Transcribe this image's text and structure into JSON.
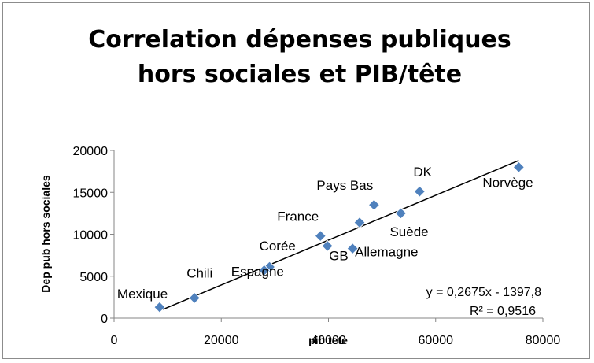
{
  "chart_data": {
    "type": "scatter",
    "title_lines": [
      "Correlation dépenses publiques",
      "hors sociales et PIB/tête"
    ],
    "xlabel": "pib tete",
    "ylabel": "Dep pub hors sociales",
    "xlim": [
      0,
      80000
    ],
    "ylim": [
      0,
      20000
    ],
    "x_ticks": [
      "0",
      "20000",
      "40000",
      "60000",
      "80000"
    ],
    "y_ticks": [
      "0",
      "5000",
      "10000",
      "15000",
      "20000"
    ],
    "marker_color": "#4f81bd",
    "grid": false,
    "legend": "none",
    "points": [
      {
        "label": "Mexique",
        "x": 8500,
        "y": 1300
      },
      {
        "label": "Chili",
        "x": 15000,
        "y": 2400
      },
      {
        "label": "Corée",
        "x": 29000,
        "y": 6100
      },
      {
        "label": "Espagne",
        "x": 28000,
        "y": 5700
      },
      {
        "label": "France",
        "x": 38500,
        "y": 9800
      },
      {
        "label": "GB",
        "x": 39800,
        "y": 8600
      },
      {
        "label": "Allemagne",
        "x": 44500,
        "y": 8300
      },
      {
        "label": "Pays Bas",
        "x": 48500,
        "y": 13500
      },
      {
        "label": "",
        "x": 45800,
        "y": 11400
      },
      {
        "label": "Suède",
        "x": 53500,
        "y": 12500
      },
      {
        "label": "DK",
        "x": 57000,
        "y": 15100
      },
      {
        "label": "Norvège",
        "x": 75500,
        "y": 18000
      }
    ],
    "trendline": {
      "slope": 0.2675,
      "intercept": -1397.8,
      "x_range": [
        8500,
        75500
      ],
      "equation": "y = 0,2675x - 1397,8",
      "r_squared": "R² = 0,9516"
    }
  }
}
